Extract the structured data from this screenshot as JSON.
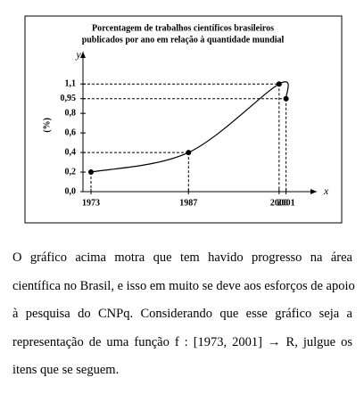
{
  "chart_data": {
    "type": "line",
    "title": [
      "Porcentagem de trabalhos científicos brasileiros",
      "publicados por ano em relação à quantidade mundial"
    ],
    "y_axis_label": "y",
    "x_axis_label": "x",
    "y_unit_label": "(%)",
    "x": [
      1973,
      1987,
      2000,
      2001
    ],
    "series": [
      {
        "values": [
          0.2,
          0.4,
          1.1,
          0.95
        ],
        "color": "#000000"
      }
    ],
    "xlim": [
      1971.85,
      2005.4
    ],
    "ylim": [
      0,
      1.43
    ],
    "xticks": [
      1973,
      1987,
      2000,
      2001
    ],
    "yticks": [
      {
        "value": 0,
        "label": "0,0"
      },
      {
        "value": 0.2,
        "label": "0,2"
      },
      {
        "value": 0.4,
        "label": "0,4"
      },
      {
        "value": 0.6,
        "label": "0,6"
      },
      {
        "value": 0.8,
        "label": "0,8"
      },
      {
        "value": 0.95,
        "label": "0,95"
      },
      {
        "value": 1.1,
        "label": "1,1"
      }
    ]
  },
  "paragraph": [
    "O gráfico acima motra que tem havido progresso na área",
    "científica no Brasil, e isso em muito se deve aos esforços de apoio",
    "à pesquisa do CNPq. Considerando que esse gráfico seja a",
    "representação de uma função f : [1973, 2001] → R, julgue os",
    "itens que se seguem."
  ]
}
